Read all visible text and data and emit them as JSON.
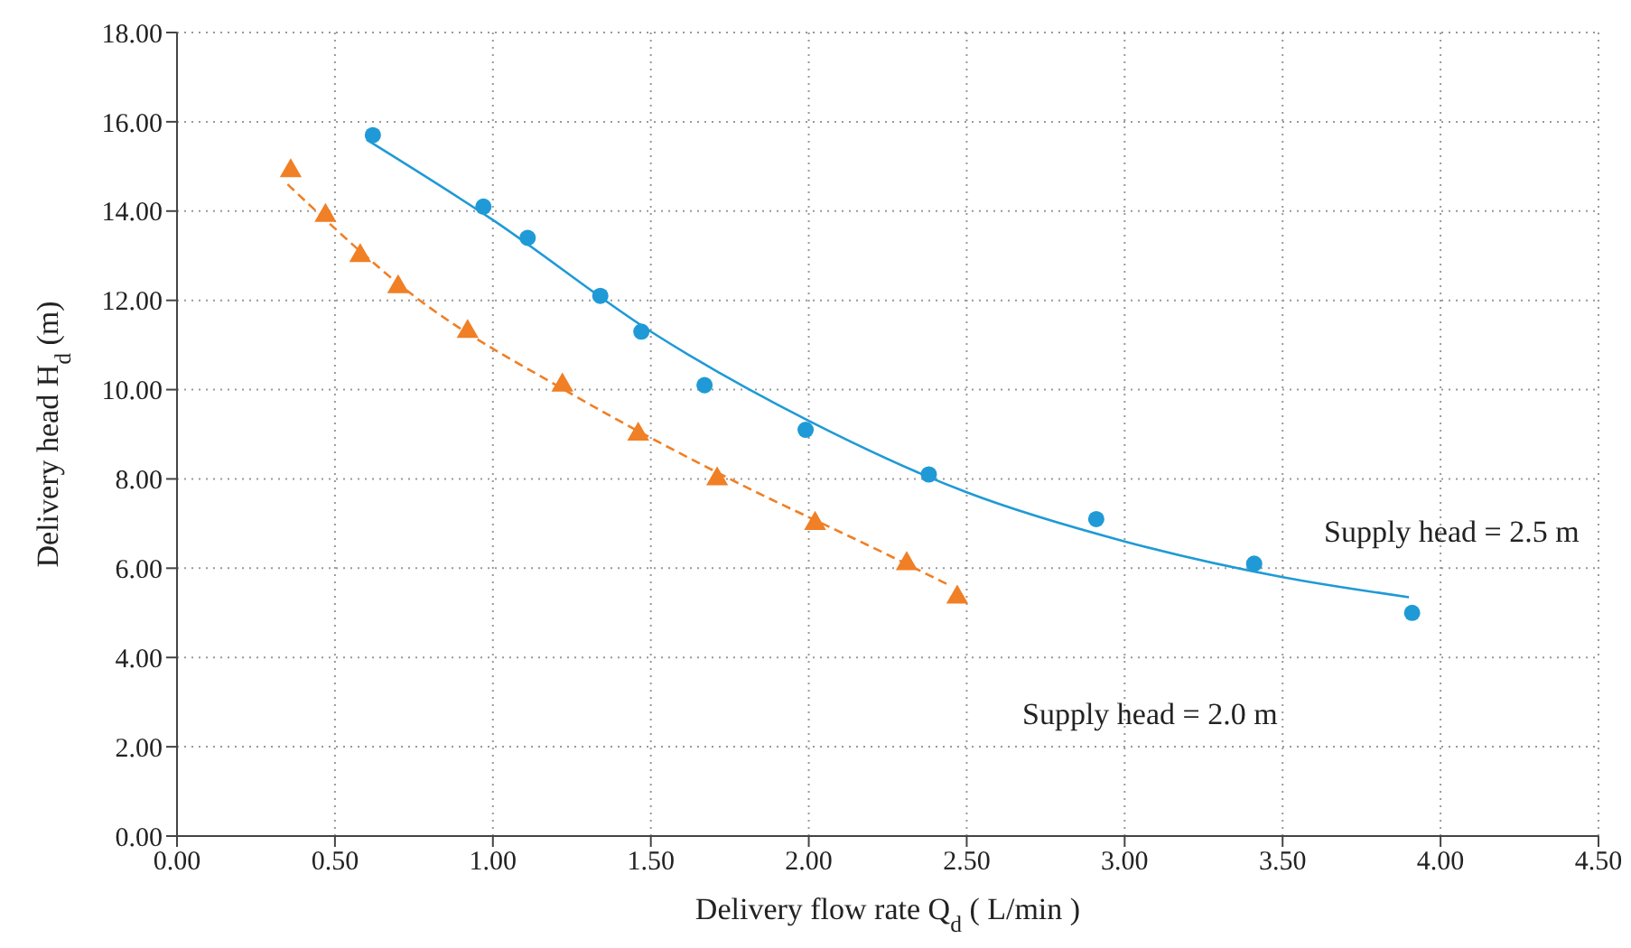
{
  "chart_data": {
    "type": "scatter",
    "xlabel": "Delivery flow rate Q$_{d}$ ( L/min )",
    "ylabel": "Delivery head H$_{d}$ (m)",
    "xlim": [
      0,
      4.5
    ],
    "ylim": [
      0,
      18
    ],
    "xticks": [
      {
        "value": 0,
        "label": "0.00"
      },
      {
        "value": 0.5,
        "label": "0.50"
      },
      {
        "value": 1,
        "label": "1.00"
      },
      {
        "value": 1.5,
        "label": "1.50"
      },
      {
        "value": 2,
        "label": "2.00"
      },
      {
        "value": 2.5,
        "label": "2.50"
      },
      {
        "value": 3,
        "label": "3.00"
      },
      {
        "value": 3.5,
        "label": "3.50"
      },
      {
        "value": 4,
        "label": "4.00"
      },
      {
        "value": 4.5,
        "label": "4.50"
      }
    ],
    "yticks": [
      {
        "value": 0,
        "label": "0.00"
      },
      {
        "value": 2,
        "label": "2.00"
      },
      {
        "value": 4,
        "label": "4.00"
      },
      {
        "value": 6,
        "label": "6.00"
      },
      {
        "value": 8,
        "label": "8.00"
      },
      {
        "value": 10,
        "label": "10.00"
      },
      {
        "value": 12,
        "label": "12.00"
      },
      {
        "value": 14,
        "label": "14.00"
      },
      {
        "value": 16,
        "label": "16.00"
      },
      {
        "value": 18,
        "label": "18.00"
      }
    ],
    "grid": true,
    "series": [
      {
        "marker": "circle",
        "color": "#1f9ad6",
        "x": [
          0.62,
          0.97,
          1.11,
          1.34,
          1.47,
          1.67,
          1.99,
          2.38,
          2.91,
          3.41,
          3.91
        ],
        "values": [
          15.7,
          14.1,
          13.4,
          12.1,
          11.3,
          10.1,
          9.1,
          8.1,
          7.1,
          6.1,
          5.0
        ]
      },
      {
        "type": "line",
        "marker": "none",
        "line_style": "solid",
        "color": "#1f9ad6",
        "x": [
          0.6,
          1.0,
          1.5,
          2.0,
          2.5,
          3.0,
          3.5,
          3.9
        ],
        "values": [
          15.6,
          13.8,
          11.3,
          9.3,
          7.7,
          6.6,
          5.8,
          5.35
        ]
      },
      {
        "marker": "triangle",
        "color": "#f07f25",
        "x": [
          0.36,
          0.47,
          0.58,
          0.7,
          0.92,
          1.22,
          1.46,
          1.71,
          2.02,
          2.31,
          2.47
        ],
        "values": [
          14.9,
          13.9,
          13.0,
          12.3,
          11.3,
          10.1,
          9.0,
          8.0,
          7.0,
          6.1,
          5.35
        ]
      },
      {
        "type": "line",
        "marker": "none",
        "line_style": "dashed",
        "color": "#f07f25",
        "x": [
          0.35,
          0.75,
          1.25,
          1.75,
          2.25,
          2.45
        ],
        "values": [
          14.6,
          12.1,
          9.9,
          8.0,
          6.3,
          5.6
        ]
      }
    ],
    "annotations": [
      "Supply head = 2.5 m",
      "Supply head = 2.0 m"
    ]
  }
}
